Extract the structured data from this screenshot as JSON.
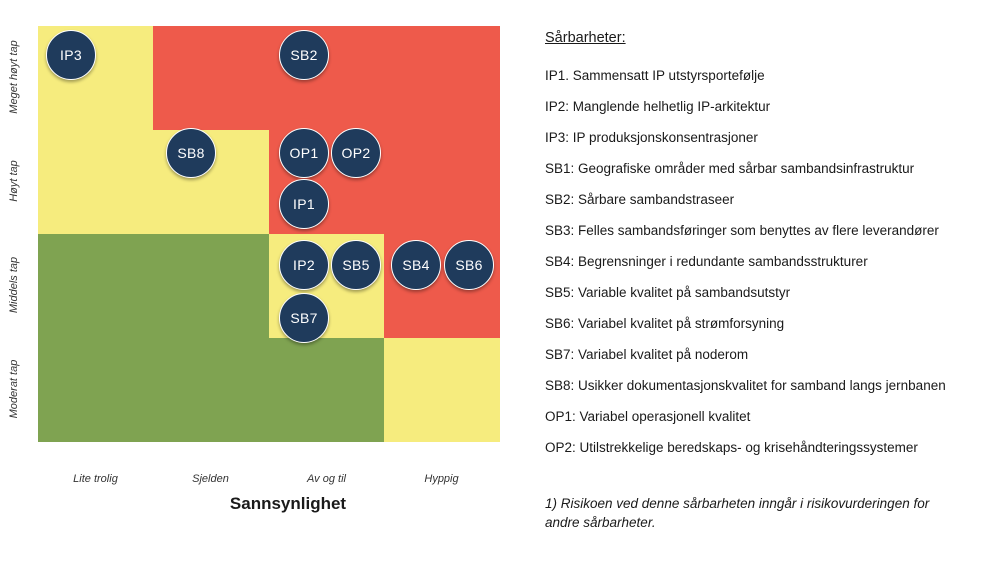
{
  "y_axis": {
    "levels": [
      "Meget høyt tap",
      "Høyt tap",
      "Middels tap",
      "Moderat tap"
    ]
  },
  "x_axis": {
    "title": "Sannsynlighet",
    "levels": [
      "Lite trolig",
      "Sjelden",
      "Av og til",
      "Hyppig"
    ]
  },
  "grid_colors": {
    "red": "#ee5a4b",
    "yellow": "#f6ec7e",
    "green": "#7fa351",
    "bubble": "#1f3b5c"
  },
  "grid": [
    [
      "yellow",
      "red",
      "red",
      "red"
    ],
    [
      "yellow",
      "yellow",
      "red",
      "red"
    ],
    [
      "green",
      "green",
      "yellow",
      "red"
    ],
    [
      "green",
      "green",
      "green",
      "yellow"
    ]
  ],
  "markers": [
    {
      "label": "IP3",
      "probability": "Lite trolig",
      "impact": "Meget høyt tap"
    },
    {
      "label": "SB2",
      "probability": "Av og til",
      "impact": "Meget høyt tap"
    },
    {
      "label": "SB8",
      "probability": "Sjelden",
      "impact": "Høyt tap"
    },
    {
      "label": "OP1",
      "probability": "Av og til",
      "impact": "Høyt tap"
    },
    {
      "label": "OP2",
      "probability": "Av og til",
      "impact": "Høyt tap"
    },
    {
      "label": "IP1",
      "probability": "Av og til",
      "impact": "Høyt tap"
    },
    {
      "label": "IP2",
      "probability": "Av og til",
      "impact": "Middels tap"
    },
    {
      "label": "SB5",
      "probability": "Av og til",
      "impact": "Middels tap"
    },
    {
      "label": "SB4",
      "probability": "Hyppig",
      "impact": "Middels tap"
    },
    {
      "label": "SB6",
      "probability": "Hyppig",
      "impact": "Middels tap"
    },
    {
      "label": "SB7",
      "probability": "Av og til",
      "impact": "Middels tap"
    }
  ],
  "legend": {
    "title": "Sårbarheter:",
    "items": [
      "IP1.  Sammensatt IP utstyrsportefølje",
      "IP2:  Manglende helhetlig IP-arkitektur",
      "IP3:  IP produksjonskonsentrasjoner",
      "SB1: Geografiske områder med sårbar sambandsinfrastruktur",
      "SB2: Sårbare sambandstraseer",
      "SB3: Felles sambandsføringer som benyttes av flere leverandører",
      "SB4: Begrensninger i redundante sambandsstrukturer",
      "SB5: Variable kvalitet på sambandsutstyr",
      "SB6: Variabel kvalitet på strømforsyning",
      "SB7: Variabel kvalitet på noderom",
      "SB8: Usikker dokumentasjonskvalitet  for samband langs jernbanen",
      "OP1: Variabel operasjonell kvalitet",
      "OP2: Utilstrekkelige beredskaps- og krisehåndteringssystemer"
    ]
  },
  "footnote": {
    "line1": "1) Risikoen ved denne sårbarheten inngår i risikovurderingen for",
    "line2": "andre sårbarheter."
  }
}
